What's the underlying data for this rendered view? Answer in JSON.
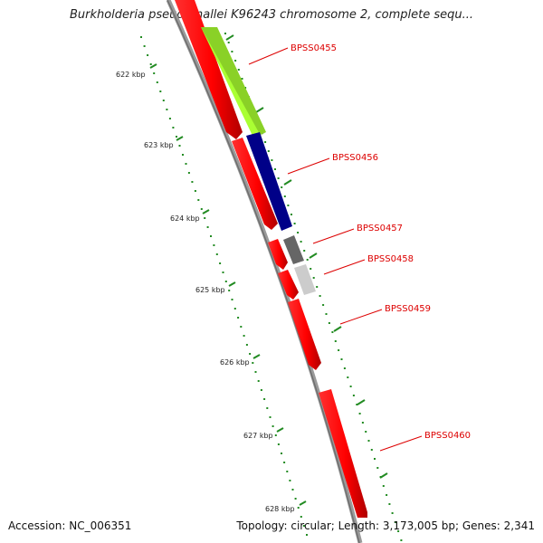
{
  "title": "Burkholderia pseudomallei K96243 chromosome 2, complete sequ...",
  "scale_labels": [
    "622 kbp",
    "623 kbp",
    "624 kbp",
    "625 kbp",
    "626 kbp",
    "627 kbp",
    "628 kbp"
  ],
  "genes": [
    {
      "label": "BPSS0455",
      "color": "#aaff33",
      "strand": "reverse"
    },
    {
      "label": "BPSS0456",
      "color": "#000088",
      "strand": "reverse"
    },
    {
      "label": "BPSS0457",
      "color": "#666666",
      "strand": "reverse"
    },
    {
      "label": "BPSS0458",
      "color": "#cccccc",
      "strand": "reverse"
    },
    {
      "label": "BPSS0459",
      "color": "#ff0000",
      "strand": "reverse"
    },
    {
      "label": "BPSS0460",
      "color": "#ff0000",
      "strand": "reverse"
    }
  ],
  "colors": {
    "cds": "#ff0000",
    "backbone": "#888888",
    "scale_ticks": "#228b22",
    "gene_label": "#dd0000"
  },
  "footer": {
    "accession": "Accession: NC_006351",
    "summary": "Topology: circular; Length: 3,173,005 bp; Genes: 2,341"
  }
}
